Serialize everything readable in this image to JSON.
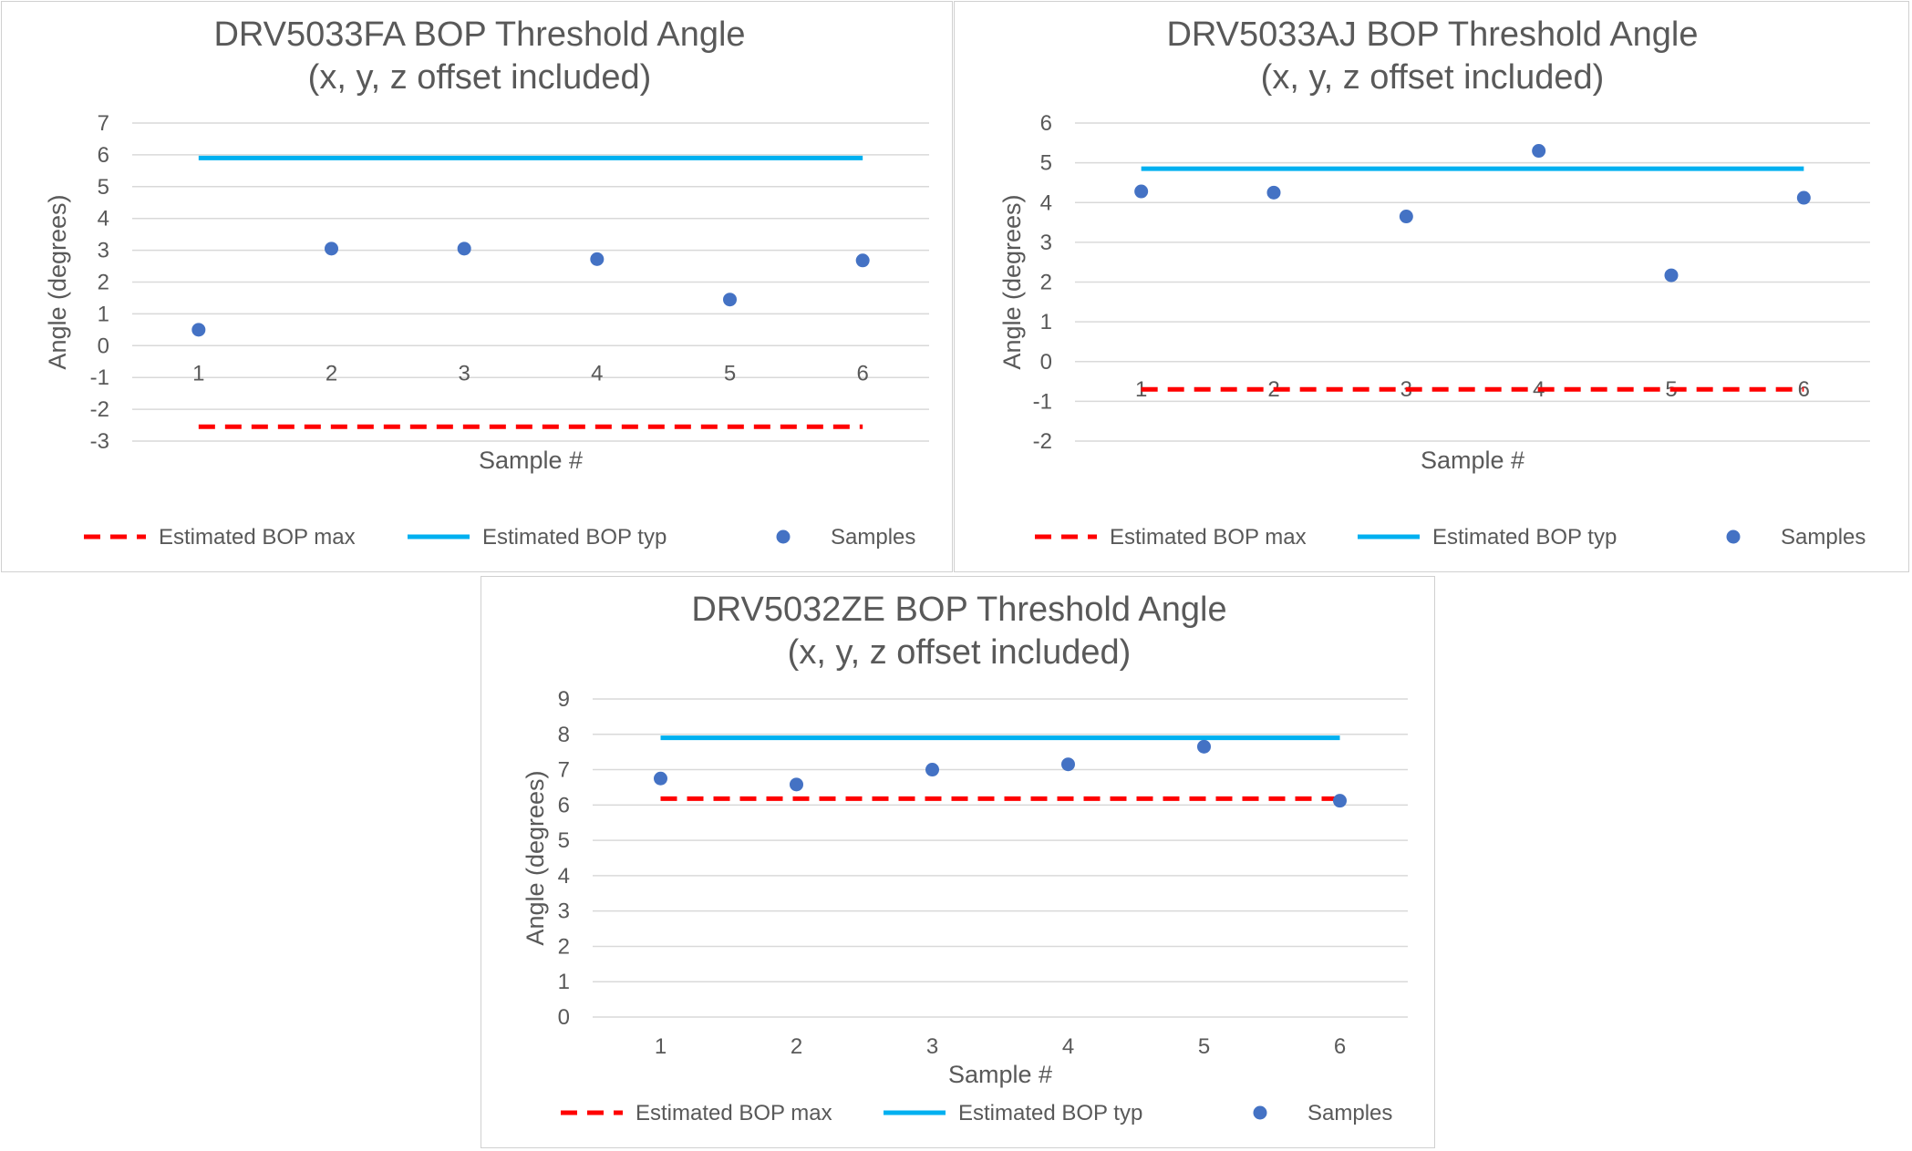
{
  "chart_data": [
    {
      "type": "scatter",
      "title": "DRV5033FA BOP Threshold Angle",
      "subtitle": "(x, y, z offset included)",
      "xlabel": "Sample #",
      "ylabel": "Angle (degrees)",
      "categories": [
        "1",
        "2",
        "3",
        "4",
        "5",
        "6"
      ],
      "ylim": [
        -3,
        7
      ],
      "yticks": [
        -3,
        -2,
        -1,
        0,
        1,
        2,
        3,
        4,
        5,
        6,
        7
      ],
      "xlabels_position": "at-zero",
      "series": [
        {
          "name": "Estimated BOP max",
          "style": "dashed-line",
          "color": "#ff0000",
          "values": [
            -2.55,
            -2.55,
            -2.55,
            -2.55,
            -2.55,
            -2.55
          ]
        },
        {
          "name": "Estimated BOP typ",
          "style": "line",
          "color": "#00b0f0",
          "values": [
            5.9,
            5.9,
            5.9,
            5.9,
            5.9,
            5.9
          ]
        },
        {
          "name": "Samples",
          "style": "marker",
          "color": "#4472c4",
          "values": [
            0.5,
            3.05,
            3.05,
            2.72,
            1.45,
            2.68
          ]
        }
      ]
    },
    {
      "type": "scatter",
      "title": "DRV5033AJ BOP Threshold Angle",
      "subtitle": "(x, y, z offset included)",
      "xlabel": "Sample #",
      "ylabel": "Angle (degrees)",
      "categories": [
        "1",
        "2",
        "3",
        "4",
        "5",
        "6"
      ],
      "ylim": [
        -2,
        6
      ],
      "yticks": [
        -2,
        -1,
        0,
        1,
        2,
        3,
        4,
        5,
        6
      ],
      "xlabels_position": "at-zero",
      "series": [
        {
          "name": "Estimated BOP max",
          "style": "dashed-line",
          "color": "#ff0000",
          "values": [
            -0.7,
            -0.7,
            -0.7,
            -0.7,
            -0.7,
            -0.7
          ]
        },
        {
          "name": "Estimated BOP typ",
          "style": "line",
          "color": "#00b0f0",
          "values": [
            4.85,
            4.85,
            4.85,
            4.85,
            4.85,
            4.85
          ]
        },
        {
          "name": "Samples",
          "style": "marker",
          "color": "#4472c4",
          "values": [
            4.28,
            4.25,
            3.65,
            5.3,
            2.17,
            4.12
          ]
        }
      ]
    },
    {
      "type": "scatter",
      "title": "DRV5032ZE BOP Threshold Angle",
      "subtitle": "(x, y, z offset included)",
      "xlabel": "Sample #",
      "ylabel": "Angle (degrees)",
      "categories": [
        "1",
        "2",
        "3",
        "4",
        "5",
        "6"
      ],
      "ylim": [
        0,
        9
      ],
      "yticks": [
        0,
        1,
        2,
        3,
        4,
        5,
        6,
        7,
        8,
        9
      ],
      "xlabels_position": "bottom",
      "series": [
        {
          "name": "Estimated BOP max",
          "style": "dashed-line",
          "color": "#ff0000",
          "values": [
            6.18,
            6.18,
            6.18,
            6.18,
            6.18,
            6.18
          ]
        },
        {
          "name": "Estimated BOP typ",
          "style": "line",
          "color": "#00b0f0",
          "values": [
            7.9,
            7.9,
            7.9,
            7.9,
            7.9,
            7.9
          ]
        },
        {
          "name": "Samples",
          "style": "marker",
          "color": "#4472c4",
          "values": [
            6.75,
            6.58,
            7.0,
            7.15,
            7.65,
            6.12
          ]
        }
      ]
    }
  ]
}
